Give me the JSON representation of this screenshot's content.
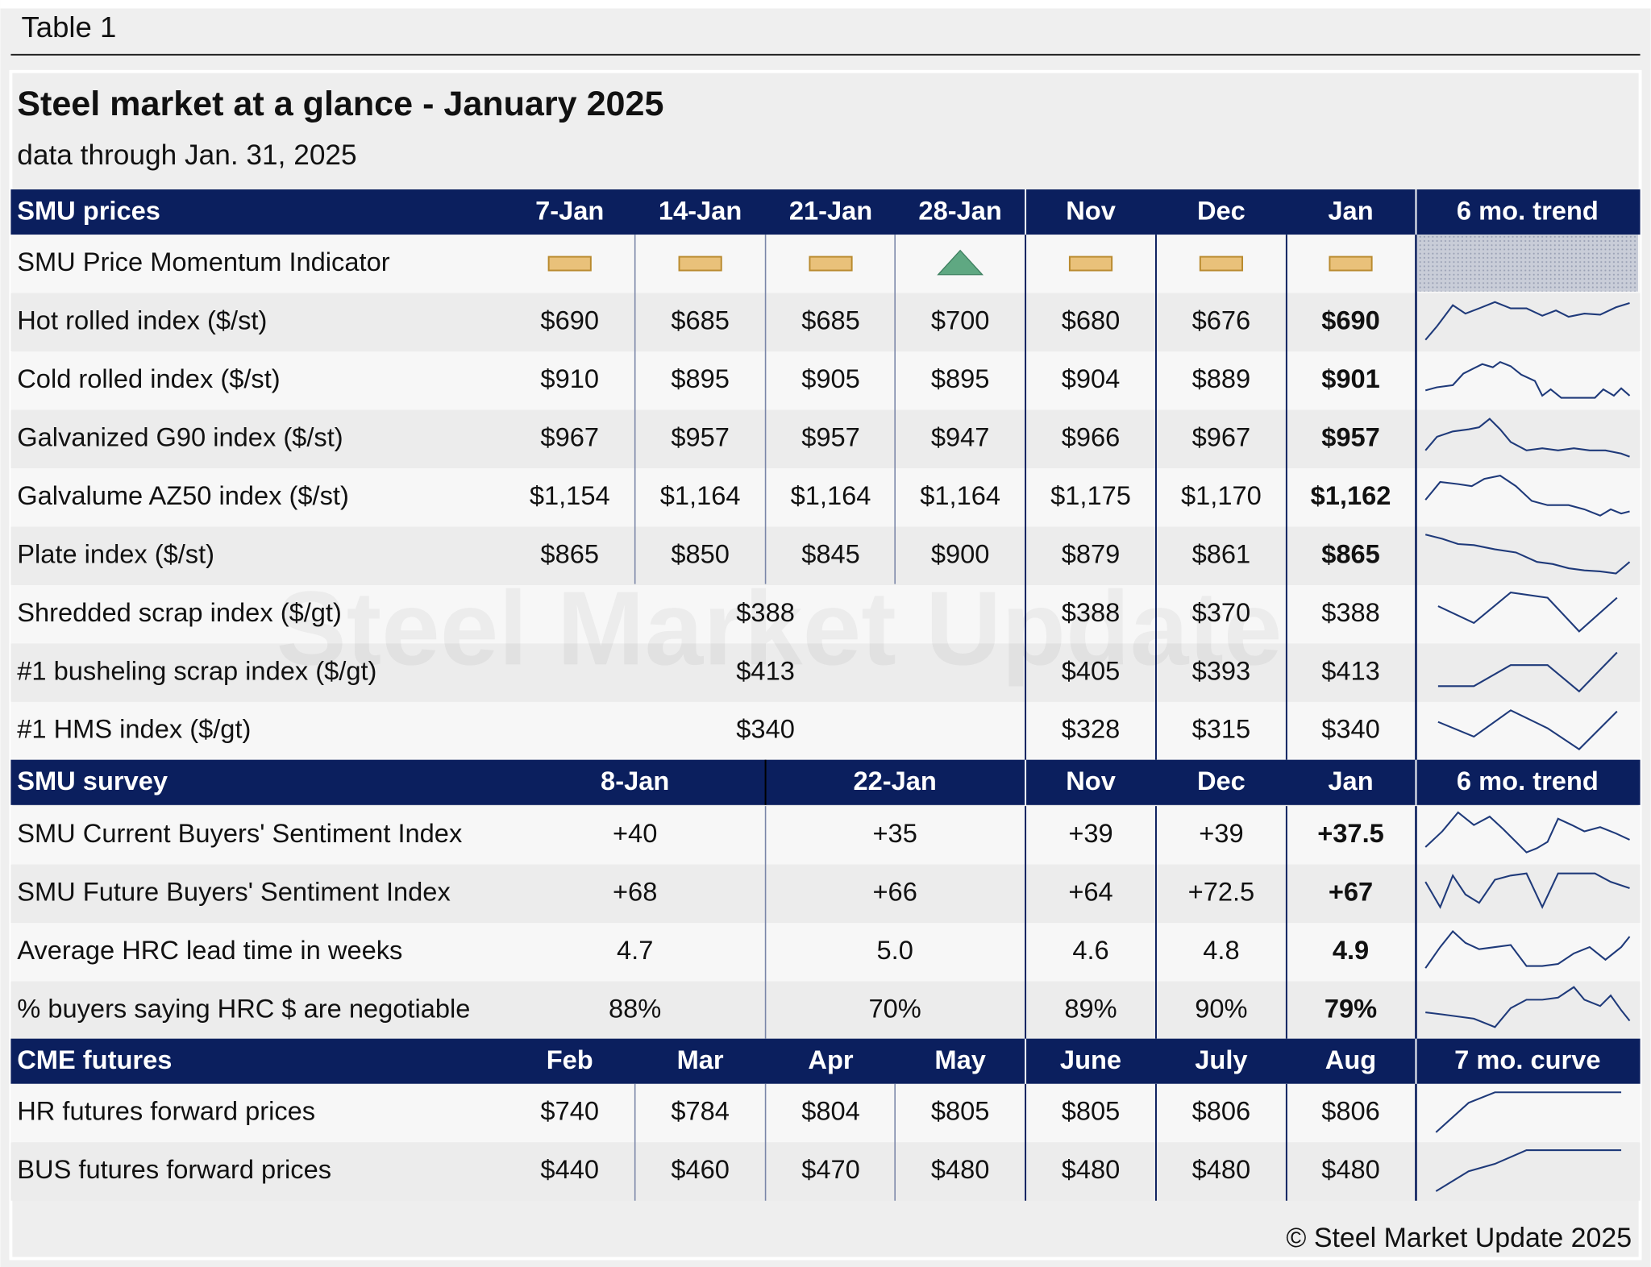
{
  "header": {
    "label": "Table 1",
    "title": "Steel market at a glance - January 2025",
    "subtitle": "data through Jan. 31, 2025",
    "watermark": "Steel Market Update"
  },
  "prices": {
    "columns": [
      "SMU prices",
      "7-Jan",
      "14-Jan",
      "21-Jan",
      "28-Jan",
      "Nov",
      "Dec",
      "Jan",
      "6 mo. trend"
    ],
    "rows": [
      {
        "label": "SMU Price Momentum Indicator"
      },
      {
        "label": "Hot rolled index ($/st)",
        "values": [
          "$690",
          "$685",
          "$685",
          "$700",
          "$680",
          "$676",
          "$690"
        ]
      },
      {
        "label": "Cold rolled index ($/st)",
        "values": [
          "$910",
          "$895",
          "$905",
          "$895",
          "$904",
          "$889",
          "$901"
        ]
      },
      {
        "label": "Galvanized G90 index ($/st)",
        "values": [
          "$967",
          "$957",
          "$957",
          "$947",
          "$966",
          "$967",
          "$957"
        ]
      },
      {
        "label": "Galvalume AZ50 index ($/st)",
        "values": [
          "$1,154",
          "$1,164",
          "$1,164",
          "$1,164",
          "$1,175",
          "$1,170",
          "$1,162"
        ]
      },
      {
        "label": "Plate index ($/st)",
        "values": [
          "$865",
          "$850",
          "$845",
          "$900",
          "$879",
          "$861",
          "$865"
        ]
      },
      {
        "label": "Shredded scrap index ($/gt)",
        "values": [
          "$388",
          "$388",
          "$370",
          "$388"
        ]
      },
      {
        "label": "#1 busheling scrap index ($/gt)",
        "values": [
          "$413",
          "$405",
          "$393",
          "$413"
        ]
      },
      {
        "label": "#1 HMS index ($/gt)",
        "values": [
          "$340",
          "$328",
          "$315",
          "$340"
        ]
      }
    ]
  },
  "survey": {
    "columns": [
      "SMU survey",
      "8-Jan",
      "22-Jan",
      "Nov",
      "Dec",
      "Jan",
      "6 mo. trend"
    ],
    "rows": [
      {
        "label": "SMU Current Buyers' Sentiment Index",
        "values": [
          "+40",
          "+35",
          "+39",
          "+39",
          "+37.5"
        ]
      },
      {
        "label": "SMU Future Buyers' Sentiment Index",
        "values": [
          "+68",
          "+66",
          "+64",
          "+72.5",
          "+67"
        ]
      },
      {
        "label": "Average HRC lead time in weeks",
        "values": [
          "4.7",
          "5.0",
          "4.6",
          "4.8",
          "4.9"
        ]
      },
      {
        "label": "% buyers saying HRC $ are negotiable",
        "values": [
          "88%",
          "70%",
          "89%",
          "90%",
          "79%"
        ]
      }
    ]
  },
  "futures": {
    "columns": [
      "CME futures",
      "Feb",
      "Mar",
      "Apr",
      "May",
      "June",
      "July",
      "Aug",
      "7 mo. curve"
    ],
    "rows": [
      {
        "label": "HR futures forward prices",
        "values": [
          "$740",
          "$784",
          "$804",
          "$805",
          "$805",
          "$806",
          "$806"
        ]
      },
      {
        "label": "BUS futures forward prices",
        "values": [
          "$440",
          "$460",
          "$470",
          "$480",
          "$480",
          "$480",
          "$480"
        ]
      }
    ]
  },
  "footer": "© Steel Market Update 2025"
}
